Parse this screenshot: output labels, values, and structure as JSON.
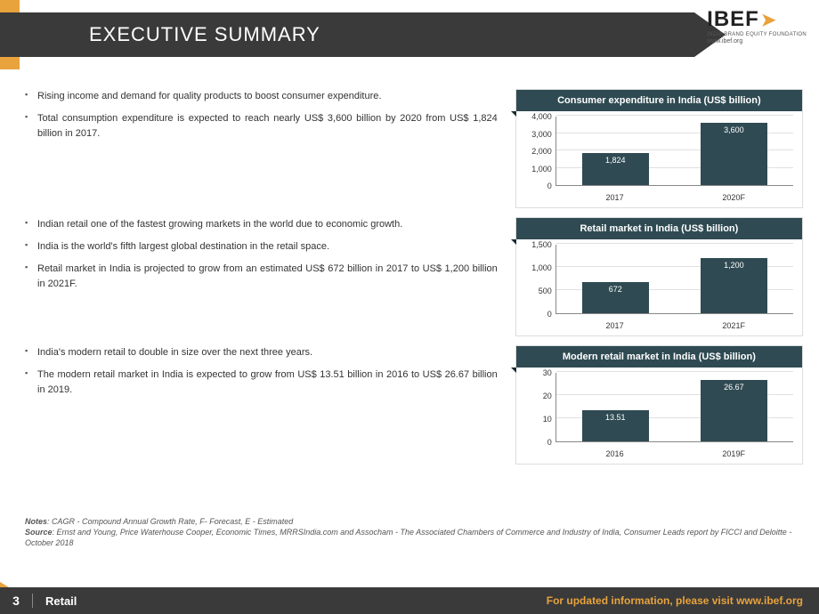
{
  "header": {
    "title": "EXECUTIVE SUMMARY",
    "logo_text": "IBEF",
    "logo_sub": "INDIA BRAND EQUITY FOUNDATION",
    "logo_url": "www.ibef.org"
  },
  "accent_color": "#e8a33d",
  "dark_color": "#3a3a3a",
  "chart_bar_color": "#2f4a52",
  "rows": [
    {
      "bullets": [
        "Rising income and demand for quality products to boost consumer expenditure.",
        "Total consumption expenditure is expected to reach nearly US$ 3,600 billion by 2020 from US$ 1,824 billion in 2017."
      ],
      "chart": {
        "type": "bar",
        "title": "Consumer expenditure in India (US$ billion)",
        "categories": [
          "2017",
          "2020F"
        ],
        "values": [
          1824,
          3600
        ],
        "value_labels": [
          "1,824",
          "3,600"
        ],
        "ymin": 0,
        "ymax": 4000,
        "ystep": 1000,
        "yticks": [
          "0",
          "1,000",
          "2,000",
          "3,000",
          "4,000"
        ],
        "bar_color": "#2f4a52",
        "grid_color": "#e0e0e0",
        "background_color": "#ffffff",
        "label_fontsize": 9
      }
    },
    {
      "bullets": [
        "Indian retail one of the fastest growing markets in the world due to economic growth.",
        "India is the world's fifth largest global destination in the retail space.",
        "Retail market in India is projected to grow from an estimated US$ 672 billion in 2017 to US$ 1,200 billion in 2021F."
      ],
      "chart": {
        "type": "bar",
        "title": "Retail market in India (US$ billion)",
        "categories": [
          "2017",
          "2021F"
        ],
        "values": [
          672,
          1200
        ],
        "value_labels": [
          "672",
          "1,200"
        ],
        "ymin": 0,
        "ymax": 1500,
        "ystep": 500,
        "yticks": [
          "0",
          "500",
          "1,000",
          "1,500"
        ],
        "bar_color": "#2f4a52",
        "grid_color": "#e0e0e0",
        "background_color": "#ffffff",
        "label_fontsize": 9
      }
    },
    {
      "bullets": [
        "India's modern retail to double in size over the next three years.",
        "The modern retail market in India is expected to grow from US$ 13.51 billion in 2016 to US$ 26.67 billion in 2019."
      ],
      "chart": {
        "type": "bar",
        "title": "Modern retail market in India (US$ billion)",
        "categories": [
          "2016",
          "2019F"
        ],
        "values": [
          13.51,
          26.67
        ],
        "value_labels": [
          "13.51",
          "26.67"
        ],
        "ymin": 0,
        "ymax": 30,
        "ystep": 10,
        "yticks": [
          "0",
          "10",
          "20",
          "30"
        ],
        "bar_color": "#2f4a52",
        "grid_color": "#e0e0e0",
        "background_color": "#ffffff",
        "label_fontsize": 9
      }
    }
  ],
  "notes": {
    "line1_label": "Notes",
    "line1": ": CAGR - Compound Annual Growth Rate, F- Forecast, E - Estimated",
    "line2_label": "Source",
    "line2": ": Ernst and Young, Price Waterhouse Cooper, Economic Times, MRRSIndia.com and Assocham - The Associated Chambers of Commerce and Industry of India, Consumer Leads report by FICCI and Deloitte - October 2018"
  },
  "footer": {
    "page": "3",
    "category": "Retail",
    "right": "For updated information, please visit www.ibef.org"
  }
}
